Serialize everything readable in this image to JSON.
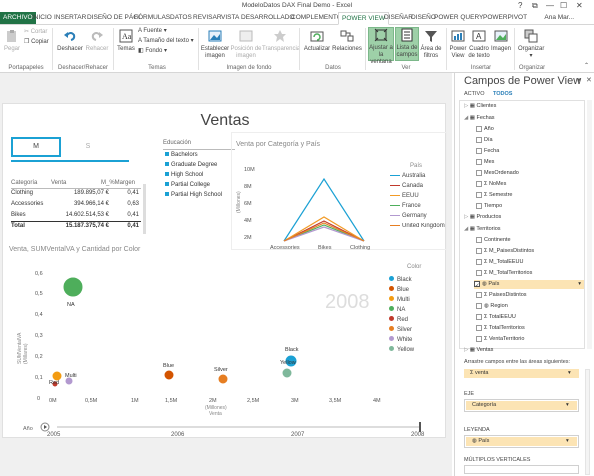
{
  "window": {
    "title": "ModeloDatos DAX Final Demo - Excel",
    "help": "?",
    "restore": "⧉",
    "minimize": "—",
    "maximize": "☐",
    "close": "✕"
  },
  "menu": {
    "tabs": [
      "ARCHIVO",
      "INICIO",
      "INSERTAR",
      "DISEÑO DE PÁGI",
      "FÓRMULAS",
      "DATOS",
      "REVISAR",
      "VISTA",
      "DESARROLLADO",
      "COMPLEMENTO",
      "POWER VIEW",
      "DISEÑAR",
      "DISEÑO",
      "POWER QUERY",
      "POWERPIVOT"
    ],
    "user": "Ana Mar..."
  },
  "ribbon": {
    "clipboard": {
      "paste": "Pegar",
      "cut": "Cortar",
      "copy": "Copiar",
      "group": "Portapapeles"
    },
    "undo": {
      "undo": "Deshacer",
      "redo": "Rehacer",
      "group": "Deshacer/Rehacer"
    },
    "themes": {
      "themes": "Temas",
      "font": "Fuente",
      "font_size": "Tamaño del texto",
      "background": "Fondo",
      "group": "Temas"
    },
    "image": {
      "set_image": "Establecer imagen",
      "position": "Posición de imagen",
      "transparency": "Transparencia",
      "group": "Imagen de fondo"
    },
    "data": {
      "refresh": "Actualizar",
      "relations": "Relaciones",
      "group": "Datos"
    },
    "view": {
      "fit": "Ajustar a la ventana",
      "field_list": "Lista de campos",
      "filter_area": "Área de filtros",
      "group": "Ver"
    },
    "insert": {
      "power_view": "Power View",
      "textbox": "Cuadro de texto",
      "picture": "Imagen",
      "group": "Insertar"
    },
    "organize": {
      "organize": "Organizar",
      "group": "Organizar"
    }
  },
  "report": {
    "title": "Ventas",
    "multiples": [
      "M",
      "S"
    ],
    "table": {
      "headers": [
        "Categoría",
        "Venta",
        "M_%Margen"
      ],
      "rows": [
        [
          "Clothing",
          "189.895,07 €",
          "0,41"
        ],
        [
          "Accessories",
          "394.966,14 €",
          "0,63"
        ],
        [
          "Bikes",
          "14.602.514,53 €",
          "0,41"
        ]
      ],
      "total": [
        "Total",
        "15.187.375,74 €",
        "0,41"
      ]
    },
    "education": {
      "title": "Educación",
      "items": [
        "Bachelors",
        "Graduate Degree",
        "High School",
        "Partial College",
        "Partial High School"
      ]
    },
    "line_chart": {
      "title": "Venta por Categoría y País",
      "ylabel": "(Millones)",
      "yticks": [
        "10M",
        "8M",
        "6M",
        "4M",
        "2M",
        "0M"
      ],
      "categories": [
        "Accessories",
        "Bikes",
        "Clothing"
      ],
      "legend_title": "País",
      "series_colors": [
        "#1ba1d4",
        "#c0392b",
        "#f29b26",
        "#4eae5b",
        "#b299cf",
        "#e67e22"
      ],
      "series_names": [
        "Australia",
        "Canada",
        "EEUU",
        "France",
        "Germany",
        "United Kingdom"
      ]
    },
    "scatter": {
      "title": "Venta, SUMVentalVA y Cantidad por Color",
      "ylabel_1": "SUMVentalVA",
      "ylabel_2": "(Millares)",
      "xlabel_1": "(Millones)",
      "xlabel_2": "Venta",
      "yticks": [
        "0,6",
        "0,5",
        "0,4",
        "0,3",
        "0,2",
        "0,1",
        "0"
      ],
      "xticks": [
        "0M",
        "0,5M",
        "1M",
        "1,5M",
        "2M",
        "2,5M",
        "3M",
        "3,5M",
        "4M"
      ],
      "watermark": "2008",
      "legend_title": "Color",
      "legend": [
        {
          "name": "Black",
          "color": "#1ba1d4"
        },
        {
          "name": "Blue",
          "color": "#d35400"
        },
        {
          "name": "Multi",
          "color": "#f39c12"
        },
        {
          "name": "NA",
          "color": "#4eae5b"
        },
        {
          "name": "Red",
          "color": "#c0392b"
        },
        {
          "name": "Silver",
          "color": "#e67e22"
        },
        {
          "name": "White",
          "color": "#b299cf"
        },
        {
          "name": "Yellow",
          "color": "#7fb89b"
        }
      ],
      "point_labels": {
        "na": "NA",
        "multi": "Multi",
        "red": "Red",
        "blue": "Blue",
        "silver": "Silver",
        "black": "Black",
        "yellow": "Yellow"
      },
      "timeline_label": "Año",
      "timeline_years": [
        "2005",
        "2006",
        "2007",
        "2008"
      ]
    }
  },
  "panel": {
    "title": "Campos de Power View",
    "tab_active": "ACTIVO",
    "tab_all": "TODOS",
    "fields": [
      {
        "label": "Clientes"
      },
      {
        "label": "Fechas"
      },
      {
        "label": "Año"
      },
      {
        "label": "Día"
      },
      {
        "label": "Fecha"
      },
      {
        "label": "Mes"
      },
      {
        "label": "MesOrdenado"
      },
      {
        "label": "NoMes"
      },
      {
        "label": "Semestre"
      },
      {
        "label": "Tiempo"
      },
      {
        "label": "Productos"
      },
      {
        "label": "Territorios"
      },
      {
        "label": "Continente"
      },
      {
        "label": "M_PaisesDistintos"
      },
      {
        "label": "M_TotalEEUU"
      },
      {
        "label": "M_TotalTerritorios"
      },
      {
        "label": "País"
      },
      {
        "label": "PaisesDistintos"
      },
      {
        "label": "Region"
      },
      {
        "label": "TotalEEUU"
      },
      {
        "label": "TotalTerritorios"
      },
      {
        "label": "VentaTerritorio"
      },
      {
        "label": "Ventas"
      }
    ],
    "drag_hint": "Arrastre campos entre las áreas siguientes:",
    "value_well": "venta",
    "axis_label": "EJE",
    "axis_well": "Categoría",
    "legend_label": "LEYENDA",
    "legend_well": "País",
    "multiples_label": "MÚLTIPLOS VERTICALES"
  }
}
